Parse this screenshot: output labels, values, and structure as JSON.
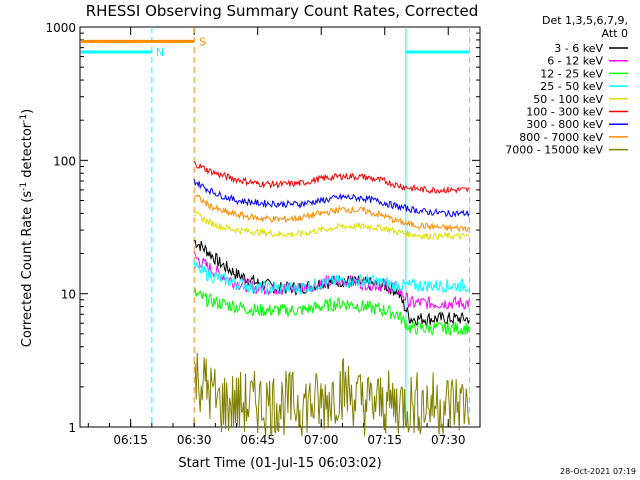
{
  "chart_data": {
    "type": "line",
    "title": "RHESSI Observing Summary Count Rates, Corrected",
    "ylabel_main": "Corrected Count Rate (s",
    "ylabel_sup1": "-1",
    "ylabel_mid": " detector",
    "ylabel_sup2": "-1",
    "ylabel_end": ")",
    "xlabel": "Start Time (01-Jul-15 06:03:02)",
    "date_stamp": "28-Oct-2021 07:19",
    "y_scale": "log",
    "ylim": [
      1,
      1000
    ],
    "xlim": [
      "06:03:02",
      "07:37:30"
    ],
    "x_tick_labels": [
      "06:15",
      "06:30",
      "06:45",
      "07:00",
      "07:15",
      "07:30"
    ],
    "y_tick_labels": [
      "1",
      "10",
      "100",
      "1000"
    ],
    "legend_header": [
      "Det 1,3,5,6,7,9,",
      "Att 0"
    ],
    "legend_placement": "right, outside plot",
    "series": [
      {
        "name": "3 - 6 keV",
        "color": "#000000",
        "x": [
          "06:30",
          "06:33",
          "06:36",
          "06:40",
          "06:45",
          "06:50",
          "06:55",
          "07:00",
          "07:05",
          "07:10",
          "07:15",
          "07:18",
          "07:21",
          "07:25",
          "07:30",
          "07:35"
        ],
        "values": [
          25,
          21,
          17,
          14,
          12,
          11,
          11,
          12,
          12.5,
          12,
          11.5,
          10.5,
          6.5,
          6.5,
          6.5,
          6.5
        ]
      },
      {
        "name": "6 - 12 keV",
        "color": "#ff00ff",
        "x": [
          "06:30",
          "06:33",
          "06:36",
          "06:40",
          "06:45",
          "06:50",
          "06:55",
          "07:00",
          "07:05",
          "07:10",
          "07:15",
          "07:18",
          "07:21",
          "07:25",
          "07:30",
          "07:35"
        ],
        "values": [
          19,
          16,
          14,
          12,
          11,
          11,
          11,
          12,
          12.5,
          12,
          11.5,
          11,
          8.5,
          8.5,
          8.5,
          8.5
        ]
      },
      {
        "name": "12 - 25 keV",
        "color": "#00ff00",
        "x": [
          "06:30",
          "06:33",
          "06:36",
          "06:40",
          "06:45",
          "06:50",
          "06:55",
          "07:00",
          "07:05",
          "07:10",
          "07:15",
          "07:18",
          "07:21",
          "07:25",
          "07:30",
          "07:35"
        ],
        "values": [
          10,
          9,
          8.5,
          8,
          7.5,
          7.5,
          7.5,
          8,
          8.5,
          8,
          7.5,
          7,
          5.5,
          5.5,
          5.5,
          5.5
        ]
      },
      {
        "name": "25 - 50 keV",
        "color": "#00ffff",
        "x": [
          "06:30",
          "06:33",
          "06:36",
          "06:40",
          "06:45",
          "06:50",
          "06:55",
          "07:00",
          "07:05",
          "07:10",
          "07:15",
          "07:18",
          "07:21",
          "07:25",
          "07:30",
          "07:35"
        ],
        "values": [
          16,
          14,
          13,
          12,
          11,
          11,
          11,
          12,
          12.5,
          12.5,
          12,
          11.5,
          11.5,
          11.5,
          11.5,
          11.5
        ]
      },
      {
        "name": "50 - 100 keV",
        "color": "#dfdf00",
        "x": [
          "06:30",
          "06:33",
          "06:36",
          "06:40",
          "06:45",
          "06:50",
          "06:55",
          "07:00",
          "07:05",
          "07:10",
          "07:15",
          "07:18",
          "07:21",
          "07:25",
          "07:30",
          "07:35"
        ],
        "values": [
          40,
          35,
          32,
          30,
          29,
          28,
          28,
          30,
          32,
          32,
          31,
          29,
          28,
          27,
          27,
          27
        ]
      },
      {
        "name": "100 - 300 keV",
        "color": "#ff0000",
        "x": [
          "06:30",
          "06:33",
          "06:36",
          "06:40",
          "06:45",
          "06:50",
          "06:55",
          "07:00",
          "07:05",
          "07:10",
          "07:15",
          "07:18",
          "07:21",
          "07:25",
          "07:30",
          "07:35"
        ],
        "values": [
          95,
          85,
          78,
          72,
          67,
          66,
          67,
          73,
          76,
          75,
          70,
          65,
          62,
          60,
          60,
          60
        ]
      },
      {
        "name": "300 - 800 keV",
        "color": "#0000ff",
        "x": [
          "06:30",
          "06:33",
          "06:36",
          "06:40",
          "06:45",
          "06:50",
          "06:55",
          "07:00",
          "07:05",
          "07:10",
          "07:15",
          "07:18",
          "07:21",
          "07:25",
          "07:30",
          "07:35"
        ],
        "values": [
          70,
          61,
          55,
          50,
          48,
          47,
          47,
          50,
          53,
          52,
          48,
          45,
          43,
          41,
          40,
          40
        ]
      },
      {
        "name": "800 - 7000 keV",
        "color": "#ff8c00",
        "x": [
          "06:30",
          "06:33",
          "06:36",
          "06:40",
          "06:45",
          "06:50",
          "06:55",
          "07:00",
          "07:05",
          "07:10",
          "07:15",
          "07:18",
          "07:21",
          "07:25",
          "07:30",
          "07:35"
        ],
        "values": [
          55,
          47,
          42,
          39,
          37,
          36,
          37,
          40,
          43,
          42,
          38,
          35,
          33,
          32,
          31,
          31
        ]
      },
      {
        "name": "7000 - 15000 keV",
        "color": "#808000",
        "x": [
          "06:30",
          "06:33",
          "06:36",
          "06:40",
          "06:45",
          "06:50",
          "06:55",
          "07:00",
          "07:05",
          "07:10",
          "07:15",
          "07:18",
          "07:21",
          "07:25",
          "07:30",
          "07:35"
        ],
        "values": [
          2.5,
          2,
          1.5,
          1.5,
          1.5,
          1.5,
          1.5,
          1.5,
          2,
          1.5,
          1.5,
          1.5,
          1.5,
          1.5,
          1.5,
          1.5
        ]
      }
    ],
    "annotations": [
      {
        "label": "N",
        "kind": "night",
        "color": "#00ffff",
        "x_start": "06:03:02",
        "x_end": "06:20",
        "x_end2": "07:20",
        "x_end3": "07:35",
        "level": 650
      },
      {
        "label": "S",
        "kind": "saa",
        "color": "#ff8c00",
        "x_start": "06:03:02",
        "x_end": "06:30",
        "level": 780
      }
    ]
  }
}
